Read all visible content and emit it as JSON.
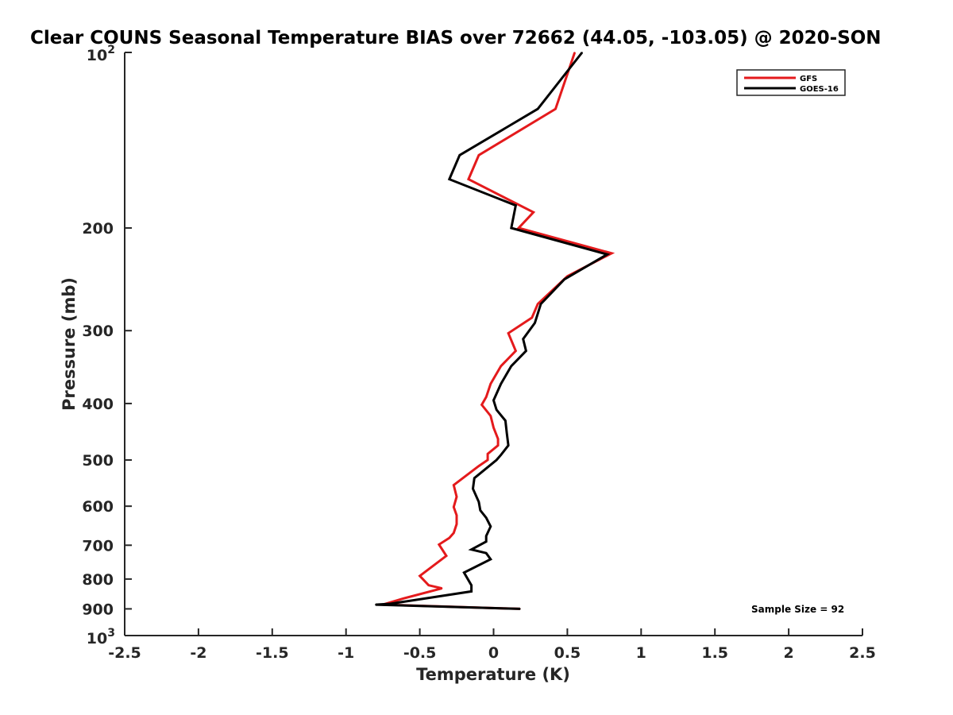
{
  "chart_data": {
    "type": "line",
    "title": "Clear COUNS Seasonal Temperature BIAS over 72662 (44.05, -103.05) @ 2020-SON",
    "xlabel": "Temperature (K)",
    "ylabel": "Pressure (mb)",
    "xlim": [
      -2.5,
      2.5
    ],
    "ylim": [
      100,
      1000
    ],
    "y_scale": "log",
    "y_reversed": true,
    "grid": false,
    "legend_position": "top-right",
    "x_ticks": [
      "-2.5",
      "-2",
      "-1.5",
      "-1",
      "-0.5",
      "0",
      "0.5",
      "1",
      "1.5",
      "2",
      "2.5"
    ],
    "y_ticks": [
      {
        "value": 100,
        "base": "10",
        "exp": "2"
      },
      {
        "value": 200,
        "label": "200"
      },
      {
        "value": 300,
        "label": "300"
      },
      {
        "value": 400,
        "label": "400"
      },
      {
        "value": 500,
        "label": "500"
      },
      {
        "value": 600,
        "label": "600"
      },
      {
        "value": 700,
        "label": "700"
      },
      {
        "value": 800,
        "label": "800"
      },
      {
        "value": 900,
        "label": "900"
      },
      {
        "value": 1000,
        "base": "10",
        "exp": "3"
      }
    ],
    "annotation": "Sample Size = 92",
    "series": [
      {
        "name": "GFS",
        "color": "#e41a1c",
        "points": [
          [
            0.55,
            100
          ],
          [
            0.42,
            125
          ],
          [
            -0.1,
            150
          ],
          [
            -0.17,
            165
          ],
          [
            0.27,
            188
          ],
          [
            0.17,
            200
          ],
          [
            0.8,
            221
          ],
          [
            0.5,
            242
          ],
          [
            0.3,
            270
          ],
          [
            0.26,
            285
          ],
          [
            0.1,
            303
          ],
          [
            0.15,
            325
          ],
          [
            0.05,
            345
          ],
          [
            -0.02,
            370
          ],
          [
            -0.05,
            390
          ],
          [
            -0.08,
            402
          ],
          [
            -0.02,
            420
          ],
          [
            0.0,
            440
          ],
          [
            0.03,
            460
          ],
          [
            0.03,
            472
          ],
          [
            -0.04,
            488
          ],
          [
            -0.04,
            500
          ],
          [
            -0.1,
            512
          ],
          [
            -0.27,
            552
          ],
          [
            -0.25,
            578
          ],
          [
            -0.27,
            602
          ],
          [
            -0.25,
            622
          ],
          [
            -0.25,
            644
          ],
          [
            -0.27,
            667
          ],
          [
            -0.3,
            680
          ],
          [
            -0.37,
            698
          ],
          [
            -0.32,
            730
          ],
          [
            -0.5,
            790
          ],
          [
            -0.44,
            820
          ],
          [
            -0.35,
            830
          ],
          [
            -0.62,
            865
          ],
          [
            -0.75,
            885
          ],
          [
            0.18,
            900
          ]
        ]
      },
      {
        "name": "GOES-16",
        "color": "#000000",
        "points": [
          [
            0.6,
            100
          ],
          [
            0.3,
            125
          ],
          [
            -0.23,
            150
          ],
          [
            -0.3,
            165
          ],
          [
            0.15,
            183
          ],
          [
            0.12,
            200
          ],
          [
            0.77,
            222
          ],
          [
            0.48,
            245
          ],
          [
            0.32,
            270
          ],
          [
            0.28,
            291
          ],
          [
            0.2,
            310
          ],
          [
            0.22,
            325
          ],
          [
            0.12,
            345
          ],
          [
            0.05,
            370
          ],
          [
            0.0,
            395
          ],
          [
            0.02,
            410
          ],
          [
            0.08,
            428
          ],
          [
            0.09,
            450
          ],
          [
            0.1,
            472
          ],
          [
            0.05,
            490
          ],
          [
            0.02,
            500
          ],
          [
            -0.13,
            537
          ],
          [
            -0.14,
            560
          ],
          [
            -0.1,
            590
          ],
          [
            -0.09,
            610
          ],
          [
            -0.05,
            628
          ],
          [
            -0.02,
            650
          ],
          [
            -0.05,
            675
          ],
          [
            -0.05,
            690
          ],
          [
            -0.15,
            712
          ],
          [
            -0.05,
            722
          ],
          [
            -0.02,
            740
          ],
          [
            -0.2,
            780
          ],
          [
            -0.15,
            820
          ],
          [
            -0.15,
            840
          ],
          [
            -0.7,
            882
          ],
          [
            -0.8,
            885
          ],
          [
            0.18,
            900
          ]
        ]
      }
    ]
  }
}
